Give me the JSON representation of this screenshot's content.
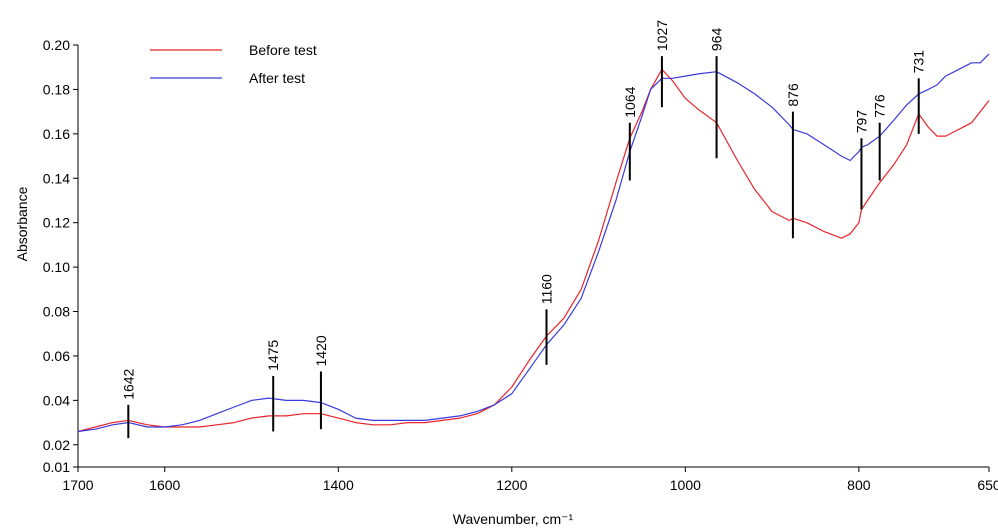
{
  "chart_data": {
    "type": "line",
    "xlabel": "Wavenumber, cm⁻¹",
    "ylabel": "Absorbance",
    "xlim": [
      1700,
      650
    ],
    "ylim": [
      0.01,
      0.2
    ],
    "x_ticks": [
      1700,
      1600,
      1400,
      1200,
      1000,
      800,
      650
    ],
    "y_ticks": [
      0.01,
      0.02,
      0.04,
      0.06,
      0.08,
      0.1,
      0.12,
      0.14,
      0.16,
      0.18,
      0.2
    ],
    "y_tick_labels": [
      "0.01",
      "0.02",
      "0.04",
      "0.06",
      "0.08",
      "0.10",
      "0.12",
      "0.14",
      "0.16",
      "0.18",
      "0.20"
    ],
    "grid": false,
    "legend_position": "top-left",
    "series": [
      {
        "name": "Before test",
        "color": "#e8242b",
        "x": [
          1700,
          1680,
          1660,
          1642,
          1620,
          1600,
          1580,
          1560,
          1540,
          1520,
          1500,
          1480,
          1460,
          1440,
          1420,
          1400,
          1380,
          1360,
          1340,
          1320,
          1300,
          1280,
          1260,
          1240,
          1220,
          1200,
          1180,
          1160,
          1140,
          1120,
          1100,
          1080,
          1064,
          1050,
          1040,
          1027,
          1015,
          1000,
          985,
          964,
          940,
          920,
          900,
          880,
          876,
          860,
          840,
          820,
          810,
          800,
          797,
          790,
          776,
          760,
          745,
          731,
          720,
          710,
          700,
          690,
          680,
          670,
          660,
          650
        ],
        "y": [
          0.026,
          0.028,
          0.03,
          0.031,
          0.029,
          0.028,
          0.028,
          0.028,
          0.029,
          0.03,
          0.032,
          0.033,
          0.033,
          0.034,
          0.034,
          0.032,
          0.03,
          0.029,
          0.029,
          0.03,
          0.03,
          0.031,
          0.032,
          0.034,
          0.038,
          0.046,
          0.058,
          0.069,
          0.077,
          0.09,
          0.112,
          0.138,
          0.158,
          0.17,
          0.18,
          0.189,
          0.184,
          0.176,
          0.171,
          0.165,
          0.148,
          0.135,
          0.125,
          0.121,
          0.122,
          0.12,
          0.116,
          0.113,
          0.115,
          0.12,
          0.126,
          0.13,
          0.138,
          0.146,
          0.155,
          0.169,
          0.163,
          0.159,
          0.159,
          0.161,
          0.163,
          0.165,
          0.17,
          0.175
        ]
      },
      {
        "name": "After test",
        "color": "#3a3adb",
        "x": [
          1700,
          1680,
          1660,
          1642,
          1620,
          1600,
          1580,
          1560,
          1540,
          1520,
          1500,
          1480,
          1460,
          1440,
          1420,
          1400,
          1380,
          1360,
          1340,
          1320,
          1300,
          1280,
          1260,
          1240,
          1220,
          1200,
          1180,
          1160,
          1140,
          1120,
          1100,
          1080,
          1064,
          1050,
          1040,
          1027,
          1015,
          1000,
          985,
          964,
          940,
          920,
          900,
          880,
          876,
          860,
          840,
          820,
          810,
          800,
          797,
          790,
          776,
          760,
          745,
          731,
          720,
          710,
          700,
          690,
          680,
          670,
          660,
          650
        ],
        "y": [
          0.026,
          0.027,
          0.029,
          0.03,
          0.028,
          0.028,
          0.029,
          0.031,
          0.034,
          0.037,
          0.04,
          0.041,
          0.04,
          0.04,
          0.039,
          0.036,
          0.032,
          0.031,
          0.031,
          0.031,
          0.031,
          0.032,
          0.033,
          0.035,
          0.038,
          0.043,
          0.054,
          0.065,
          0.074,
          0.086,
          0.107,
          0.13,
          0.152,
          0.168,
          0.18,
          0.185,
          0.185,
          0.186,
          0.187,
          0.188,
          0.183,
          0.178,
          0.172,
          0.164,
          0.162,
          0.16,
          0.155,
          0.15,
          0.148,
          0.152,
          0.154,
          0.155,
          0.159,
          0.166,
          0.173,
          0.178,
          0.18,
          0.182,
          0.186,
          0.188,
          0.19,
          0.192,
          0.192,
          0.196
        ]
      }
    ],
    "annotations": [
      {
        "label": "1642",
        "x": 1642,
        "y_low": 0.023,
        "y_high": 0.038
      },
      {
        "label": "1475",
        "x": 1475,
        "y_low": 0.026,
        "y_high": 0.051
      },
      {
        "label": "1420",
        "x": 1420,
        "y_low": 0.027,
        "y_high": 0.053
      },
      {
        "label": "1160",
        "x": 1160,
        "y_low": 0.056,
        "y_high": 0.081
      },
      {
        "label": "1064",
        "x": 1064,
        "y_low": 0.139,
        "y_high": 0.165
      },
      {
        "label": "1027",
        "x": 1027,
        "y_low": 0.172,
        "y_high": 0.195
      },
      {
        "label": "964",
        "x": 964,
        "y_low": 0.149,
        "y_high": 0.195
      },
      {
        "label": "876",
        "x": 876,
        "y_low": 0.113,
        "y_high": 0.17
      },
      {
        "label": "797",
        "x": 797,
        "y_low": 0.126,
        "y_high": 0.158
      },
      {
        "label": "776",
        "x": 776,
        "y_low": 0.139,
        "y_high": 0.165
      },
      {
        "label": "731",
        "x": 731,
        "y_low": 0.16,
        "y_high": 0.185
      }
    ]
  }
}
